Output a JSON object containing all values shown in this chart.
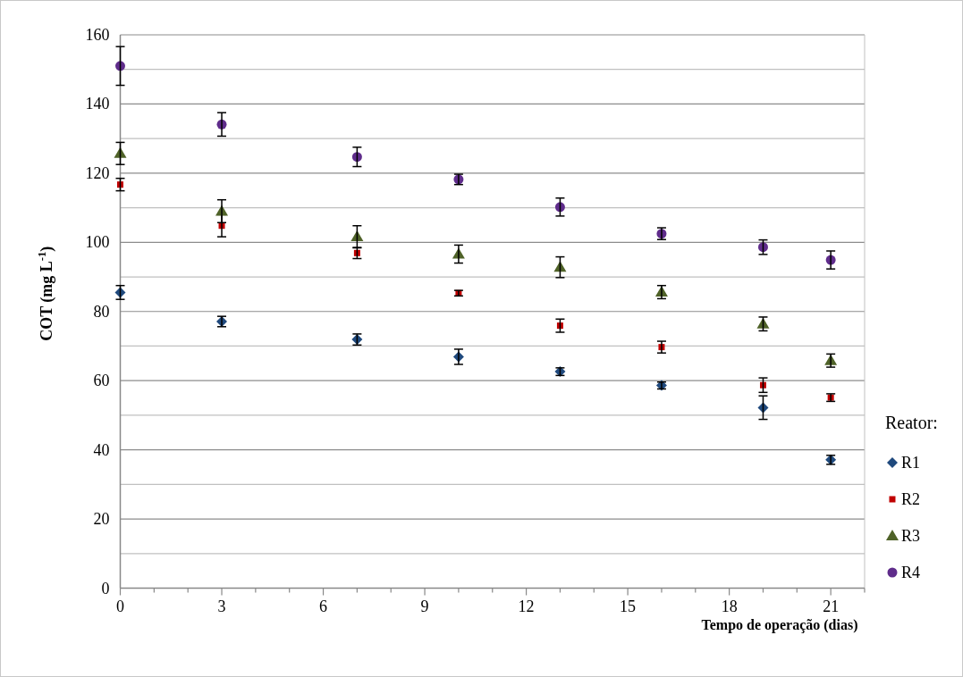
{
  "chart_data": {
    "type": "scatter",
    "xlabel": "Tempo de operação (dias)",
    "ylabel": "COT (mg L$^{-1}$)",
    "legend_title": "Reator:",
    "x": [
      0,
      3,
      7,
      10,
      13,
      16,
      19,
      21
    ],
    "series": [
      {
        "name": "R1",
        "color": "#1f497d",
        "marker": "diamond",
        "values": [
          85.5,
          77.1,
          71.9,
          66.9,
          62.6,
          58.6,
          52.2,
          37.1
        ],
        "errors": [
          2,
          1.5,
          1.6,
          2.2,
          1.1,
          1,
          3.4,
          1.3
        ]
      },
      {
        "name": "R2",
        "color": "#c00000",
        "marker": "square",
        "values": [
          116.7,
          104.8,
          96.9,
          85.3,
          75.9,
          69.7,
          58.7,
          55.1
        ],
        "errors": [
          1.8,
          3.2,
          1.6,
          0.8,
          1.9,
          1.7,
          2.1,
          1.1
        ]
      },
      {
        "name": "R3",
        "color": "#4f6228",
        "marker": "triangle",
        "values": [
          125.7,
          109,
          101.6,
          96.6,
          92.8,
          85.6,
          76.4,
          65.8
        ],
        "errors": [
          3.2,
          3.3,
          3.2,
          2.6,
          3,
          1.9,
          2,
          1.9
        ]
      },
      {
        "name": "R4",
        "color": "#5f2c8b",
        "marker": "circle",
        "values": [
          151,
          134.1,
          124.7,
          118.2,
          110.2,
          102.5,
          98.6,
          94.9
        ],
        "errors": [
          5.6,
          3.4,
          2.8,
          1.5,
          2.6,
          1.7,
          2.1,
          2.6
        ]
      }
    ],
    "xlim": [
      0,
      22
    ],
    "xticks": [
      0,
      {
        "value": 1,
        "label": null
      },
      {
        "value": 2,
        "label": null
      },
      3,
      {
        "value": 4,
        "label": null
      },
      {
        "value": 5,
        "label": null
      },
      6,
      {
        "value": 7,
        "label": null
      },
      {
        "value": 8,
        "label": null
      },
      9,
      {
        "value": 10,
        "label": null
      },
      {
        "value": 11,
        "label": null
      },
      12,
      {
        "value": 13,
        "label": null
      },
      {
        "value": 14,
        "label": null
      },
      15,
      {
        "value": 16,
        "label": null
      },
      {
        "value": 17,
        "label": null
      },
      18,
      {
        "value": 19,
        "label": null
      },
      {
        "value": 20,
        "label": null
      },
      21,
      {
        "value": 22,
        "label": null
      }
    ],
    "ylim": [
      0,
      160
    ],
    "yticks": [
      0,
      {
        "value": 10,
        "label": null
      },
      20,
      {
        "value": 30,
        "label": null
      },
      40,
      {
        "value": 50,
        "label": null
      },
      60,
      {
        "value": 70,
        "label": null
      },
      80,
      {
        "value": 90,
        "label": null
      },
      100,
      {
        "value": 110,
        "label": null
      },
      120,
      {
        "value": 130,
        "label": null
      },
      140,
      {
        "value": 150,
        "label": null
      },
      160
    ],
    "grid": "y",
    "legend": "right"
  }
}
